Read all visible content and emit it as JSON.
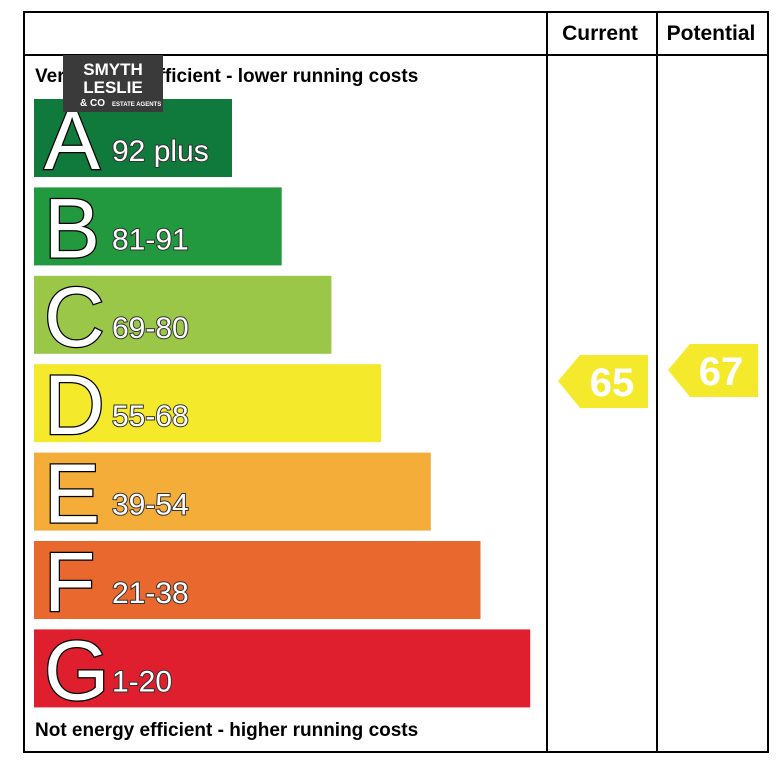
{
  "header": {
    "col_current": "Current",
    "col_potential": "Potential"
  },
  "top_note": "Very energy efficient - lower running costs",
  "bottom_note": "Not energy efficient - higher running costs",
  "bands": [
    {
      "letter": "A",
      "range": "92 plus",
      "color": "#0f7a3c"
    },
    {
      "letter": "B",
      "range": "81-91",
      "color": "#22983f"
    },
    {
      "letter": "C",
      "range": "69-80",
      "color": "#9ac748"
    },
    {
      "letter": "D",
      "range": "55-68",
      "color": "#f4ea2b"
    },
    {
      "letter": "E",
      "range": "39-54",
      "color": "#f4ad38"
    },
    {
      "letter": "F",
      "range": "21-38",
      "color": "#e9682e"
    },
    {
      "letter": "G",
      "range": "1-20",
      "color": "#df1f2d"
    }
  ],
  "current": {
    "value": "65",
    "color": "#f4ea2b"
  },
  "potential": {
    "value": "67",
    "color": "#f4ea2b"
  },
  "logo": {
    "line1": "SMYTH",
    "line2": "LESLIE",
    "line3": "& CO",
    "line4": "ESTATE AGENTS"
  }
}
